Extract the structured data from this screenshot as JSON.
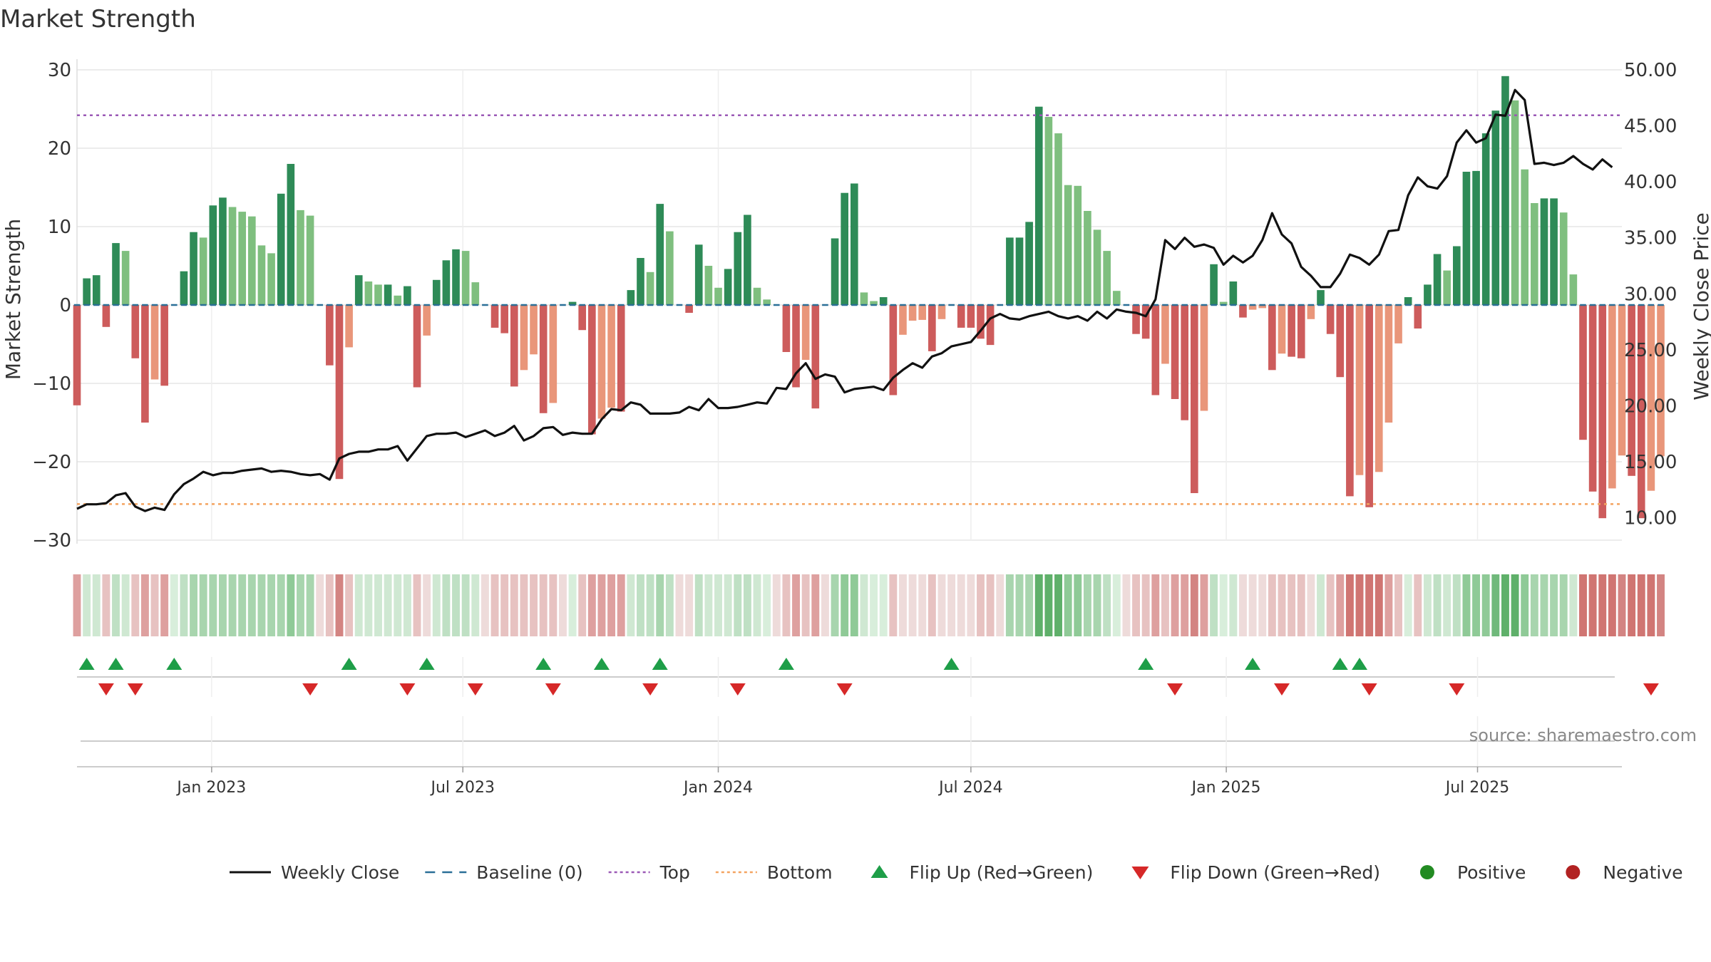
{
  "chart_data": {
    "type": "bar",
    "title": "Market Strength",
    "ylabel": "Market Strength",
    "y2label": "Weekly Close Price",
    "ylim": [
      -30,
      30
    ],
    "y2lim": [
      8,
      50
    ],
    "yticks": [
      30,
      20,
      10,
      0,
      -10,
      -20,
      -30
    ],
    "yticklabels": [
      "30",
      "20",
      "10",
      "0",
      "−10",
      "−20",
      "−30"
    ],
    "y2ticks": [
      50,
      45,
      40,
      35,
      30,
      25,
      20,
      15,
      10
    ],
    "y2ticklabels": [
      "50.00",
      "45.00",
      "40.00",
      "35.00",
      "30.00",
      "25.00",
      "20.00",
      "15.00",
      "10.00"
    ],
    "xlim": [
      "2022-09-26",
      "2025-10-13"
    ],
    "xticks": [
      {
        "date": "2023-01-01",
        "label": "Jan 2023"
      },
      {
        "date": "2023-07-01",
        "label": "Jul 2023"
      },
      {
        "date": "2024-01-01",
        "label": "Jan 2024"
      },
      {
        "date": "2024-07-01",
        "label": "Jul 2024"
      },
      {
        "date": "2025-01-01",
        "label": "Jan 2025"
      },
      {
        "date": "2025-07-01",
        "label": "Jul 2025"
      }
    ],
    "start_week": "2022-09-26",
    "strength": [
      -12.8,
      3.4,
      3.8,
      -2.8,
      7.9,
      6.9,
      -6.8,
      -15.0,
      -9.5,
      -10.3,
      0,
      4.3,
      9.3,
      8.6,
      12.7,
      13.7,
      12.5,
      11.9,
      11.3,
      7.6,
      6.6,
      14.2,
      18.0,
      12.1,
      11.4,
      0,
      -7.7,
      -22.2,
      -5.4,
      3.8,
      3.0,
      2.6,
      2.6,
      1.2,
      2.4,
      -10.5,
      -3.9,
      3.2,
      5.7,
      7.1,
      6.9,
      2.9,
      0,
      -2.9,
      -3.6,
      -10.4,
      -8.3,
      -6.3,
      -13.8,
      -12.5,
      0,
      0.4,
      -3.2,
      -16.5,
      -14.5,
      -13.1,
      -13.6,
      1.9,
      6.0,
      4.2,
      12.9,
      9.4,
      0,
      -1.0,
      7.7,
      5.0,
      2.2,
      4.6,
      9.3,
      11.5,
      2.2,
      0.7,
      0,
      -6.0,
      -10.5,
      -7.0,
      -13.2,
      0,
      8.5,
      14.3,
      15.5,
      1.6,
      0.5,
      1.0,
      -11.5,
      -3.8,
      -2.0,
      -1.9,
      -5.9,
      -1.8,
      0,
      -2.9,
      -2.9,
      -4.3,
      -5.1,
      0,
      8.6,
      8.6,
      10.6,
      25.3,
      24.0,
      21.9,
      15.3,
      15.2,
      12.0,
      9.6,
      6.9,
      1.8,
      0,
      -3.7,
      -4.3,
      -11.5,
      -7.5,
      -12.0,
      -14.7,
      -24.0,
      -13.5,
      5.2,
      0.4,
      3.0,
      -1.6,
      -0.6,
      -0.4,
      -8.3,
      -6.2,
      -6.6,
      -6.8,
      -1.8,
      1.9,
      -3.7,
      -9.2,
      -24.4,
      -21.7,
      -25.8,
      -21.3,
      -15.0,
      -4.9,
      1.0,
      -3.0,
      2.6,
      6.5,
      4.4,
      7.5,
      17.0,
      17.1,
      21.9,
      24.8,
      29.2,
      26.1,
      17.3,
      13.0,
      13.6,
      13.6,
      11.8,
      3.9,
      -17.2,
      -23.8,
      -27.2,
      -23.4,
      -19.2,
      -21.8,
      -27.2,
      -23.7,
      -19.3
    ],
    "close": [
      10.8,
      11.2,
      11.2,
      11.3,
      12.0,
      12.2,
      11.0,
      10.6,
      10.9,
      10.7,
      12.1,
      13.0,
      13.5,
      14.1,
      13.8,
      14.0,
      14.0,
      14.2,
      14.3,
      14.4,
      14.1,
      14.2,
      14.1,
      13.9,
      13.8,
      13.9,
      13.4,
      15.3,
      15.7,
      15.9,
      15.9,
      16.1,
      16.1,
      16.4,
      15.1,
      16.2,
      17.3,
      17.5,
      17.5,
      17.6,
      17.2,
      17.5,
      17.8,
      17.3,
      17.6,
      18.2,
      16.9,
      17.3,
      18.0,
      18.1,
      17.4,
      17.6,
      17.5,
      17.5,
      18.8,
      19.7,
      19.6,
      20.3,
      20.1,
      19.3,
      19.3,
      19.3,
      19.4,
      19.9,
      19.6,
      20.6,
      19.8,
      19.8,
      19.9,
      20.1,
      20.3,
      20.2,
      21.6,
      21.5,
      22.9,
      23.8,
      22.4,
      22.8,
      22.6,
      21.2,
      21.5,
      21.6,
      21.7,
      21.4,
      22.5,
      23.2,
      23.8,
      23.4,
      24.4,
      24.7,
      25.3,
      25.5,
      25.7,
      26.7,
      27.8,
      28.2,
      27.8,
      27.7,
      28.0,
      28.2,
      28.4,
      28.0,
      27.8,
      28.0,
      27.6,
      28.4,
      27.8,
      28.6,
      28.4,
      28.3,
      28.0,
      29.5,
      34.8,
      34.0,
      35.0,
      34.2,
      34.4,
      34.1,
      32.6,
      33.4,
      32.8,
      33.4,
      34.8,
      37.2,
      35.3,
      34.5,
      32.4,
      31.6,
      30.6,
      30.6,
      31.8,
      33.5,
      33.2,
      32.6,
      33.5,
      35.6,
      35.7,
      38.8,
      40.4,
      39.6,
      39.4,
      40.5,
      43.5,
      44.6,
      43.5,
      43.9,
      46.0,
      45.9,
      48.2,
      47.3,
      41.6,
      41.7,
      41.5,
      41.7,
      42.3,
      41.6,
      41.1,
      42.0,
      41.3
    ],
    "heat_colors": [
      "#dea09f",
      "#cfe8d2",
      "#cfe8d2",
      "#e7c2c1",
      "#bfe0c4",
      "#cfe8d2",
      "#e7c2c1",
      "#dea09f",
      "#e7c2c1",
      "#dea09f",
      "#d8eedb",
      "#bfe0c4",
      "#a8d5ae",
      "#a8d5ae",
      "#a8d5ae",
      "#a8d5ae",
      "#a8d5ae",
      "#a8d5ae",
      "#a8d5ae",
      "#a8d5ae",
      "#a8d5ae",
      "#a8d5ae",
      "#8fca97",
      "#a8d5ae",
      "#a8d5ae",
      "#eedbda",
      "#e7c2c1",
      "#d38482",
      "#e7c2c1",
      "#cfe8d2",
      "#cfe8d2",
      "#cfe8d2",
      "#cfe8d2",
      "#cfe8d2",
      "#cfe8d2",
      "#e7c2c1",
      "#eedbda",
      "#cfe8d2",
      "#bfe0c4",
      "#bfe0c4",
      "#bfe0c4",
      "#cfe8d2",
      "#eedbda",
      "#e7c2c1",
      "#e7c2c1",
      "#e7c2c1",
      "#e7c2c1",
      "#e7c2c1",
      "#e7c2c1",
      "#e7c2c1",
      "#eedbda",
      "#d8eedb",
      "#e7c2c1",
      "#dea09f",
      "#dea09f",
      "#dea09f",
      "#dea09f",
      "#cfe8d2",
      "#bfe0c4",
      "#bfe0c4",
      "#a8d5ae",
      "#bfe0c4",
      "#eedbda",
      "#eedbda",
      "#bfe0c4",
      "#cfe8d2",
      "#cfe8d2",
      "#cfe8d2",
      "#bfe0c4",
      "#bfe0c4",
      "#cfe8d2",
      "#d8eedb",
      "#eedbda",
      "#e7c2c1",
      "#dea09f",
      "#e7c2c1",
      "#dea09f",
      "#eedbda",
      "#a8d5ae",
      "#8fca97",
      "#8fca97",
      "#cfe8d2",
      "#d8eedb",
      "#d8eedb",
      "#e7c2c1",
      "#eedbda",
      "#eedbda",
      "#eedbda",
      "#e7c2c1",
      "#eedbda",
      "#eedbda",
      "#eedbda",
      "#eedbda",
      "#e7c2c1",
      "#e7c2c1",
      "#eedbda",
      "#a8d5ae",
      "#a8d5ae",
      "#a8d5ae",
      "#5fb06a",
      "#5fb06a",
      "#5fb06a",
      "#8fca97",
      "#8fca97",
      "#a8d5ae",
      "#a8d5ae",
      "#bfe0c4",
      "#d8eedb",
      "#eedbda",
      "#e7c2c1",
      "#e7c2c1",
      "#dea09f",
      "#e7c2c1",
      "#dea09f",
      "#dea09f",
      "#d38482",
      "#dea09f",
      "#bfe0c4",
      "#d8eedb",
      "#cfe8d2",
      "#eedbda",
      "#eedbda",
      "#eedbda",
      "#e7c2c1",
      "#e7c2c1",
      "#e7c2c1",
      "#e7c2c1",
      "#eedbda",
      "#cfe8d2",
      "#e7c2c1",
      "#dea09f",
      "#d07572",
      "#d07572",
      "#d07572",
      "#d07572",
      "#dea09f",
      "#e7c2c1",
      "#d8eedb",
      "#e7c2c1",
      "#cfe8d2",
      "#bfe0c4",
      "#cfe8d2",
      "#bfe0c4",
      "#8fca97",
      "#8fca97",
      "#8fca97",
      "#70b97b",
      "#5fb06a",
      "#5fb06a",
      "#8fca97",
      "#a8d5ae",
      "#a8d5ae",
      "#a8d5ae",
      "#a8d5ae",
      "#cfe8d2",
      "#d07572",
      "#d07572",
      "#d07572",
      "#d07572",
      "#d38482",
      "#d07572",
      "#d07572",
      "#d07572",
      "#d38482"
    ],
    "flip_up_weeks": [
      1,
      4,
      10,
      28,
      36,
      48,
      54,
      60,
      73,
      90,
      110,
      121,
      130,
      132
    ],
    "flip_down_weeks": [
      3,
      6,
      24,
      34,
      41,
      49,
      59,
      68,
      79,
      113,
      124,
      133,
      142,
      162
    ],
    "top": 24.2,
    "bottom": -25.4,
    "baseline": 0,
    "colors": {
      "pos_strong": "#2e8b57",
      "pos_weak": "#7fbf7f",
      "neg_strong": "#cd5c5c",
      "neg_weak": "#e9967a",
      "close": "#111111",
      "baseline": "#2a6f97",
      "top": "#9b59b6",
      "bottom": "#f4a460",
      "flip_up": "#1e9e48",
      "flip_down": "#d62828",
      "positive": "#228b22",
      "negative": "#b22222"
    },
    "legend": [
      {
        "label": "Weekly Close",
        "kind": "line"
      },
      {
        "label": "Baseline (0)",
        "kind": "dash"
      },
      {
        "label": "Top",
        "kind": "dot-purple"
      },
      {
        "label": "Bottom",
        "kind": "dot-orange"
      },
      {
        "label": "Flip Up (Red→Green)",
        "kind": "tri-up"
      },
      {
        "label": "Flip Down (Green→Red)",
        "kind": "tri-down"
      },
      {
        "label": "Positive",
        "kind": "circle-pos"
      },
      {
        "label": "Negative",
        "kind": "circle-neg"
      }
    ],
    "source": "source: sharemaestro.com"
  }
}
